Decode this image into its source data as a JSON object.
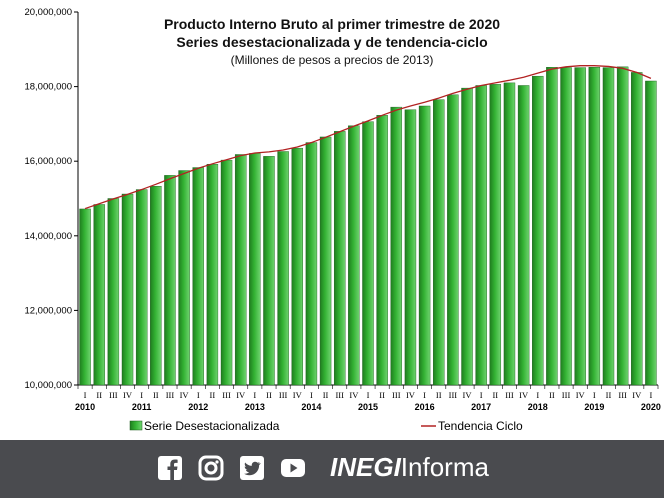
{
  "header": {
    "title_line1": "Producto Interno Bruto al primer trimestre de 2020",
    "title_line2": "Series desestacionalizada y de tendencia-ciclo",
    "subtitle": "(Millones de pesos a precios de 2013)"
  },
  "footer": {
    "brand_bold": "INEGI",
    "brand_regular": "Informa",
    "icons": [
      "facebook-icon",
      "instagram-icon",
      "twitter-icon",
      "youtube-icon"
    ],
    "background": "#4a4b4f"
  },
  "chart_data": {
    "type": "bar",
    "title": "Producto Interno Bruto al primer trimestre de 2020",
    "subtitle": "Series desestacionalizada y de tendencia-ciclo (Millones de pesos a precios de 2013)",
    "ylim": [
      10000000,
      20000000
    ],
    "y_ticks": [
      "10,000,000",
      "12,000,000",
      "14,000,000",
      "16,000,000",
      "18,000,000",
      "20,000,000"
    ],
    "quarter_labels": [
      "I",
      "II",
      "III",
      "IV"
    ],
    "years": [
      "2010",
      "2011",
      "2012",
      "2013",
      "2014",
      "2015",
      "2016",
      "2017",
      "2018",
      "2019",
      "2020"
    ],
    "categories": [
      "2010-I",
      "2010-II",
      "2010-III",
      "2010-IV",
      "2011-I",
      "2011-II",
      "2011-III",
      "2011-IV",
      "2012-I",
      "2012-II",
      "2012-III",
      "2012-IV",
      "2013-I",
      "2013-II",
      "2013-III",
      "2013-IV",
      "2014-I",
      "2014-II",
      "2014-III",
      "2014-IV",
      "2015-I",
      "2015-II",
      "2015-III",
      "2015-IV",
      "2016-I",
      "2016-II",
      "2016-III",
      "2016-IV",
      "2017-I",
      "2017-II",
      "2017-III",
      "2017-IV",
      "2018-I",
      "2018-II",
      "2018-III",
      "2018-IV",
      "2019-I",
      "2019-II",
      "2019-III",
      "2019-IV",
      "2020-I"
    ],
    "series": [
      {
        "name": "Serie Desestacionalizada",
        "color": "#33b233",
        "values": [
          14720000,
          14840000,
          15000000,
          15120000,
          15240000,
          15330000,
          15620000,
          15750000,
          15830000,
          15920000,
          16030000,
          16180000,
          16210000,
          16130000,
          16260000,
          16350000,
          16500000,
          16650000,
          16800000,
          16950000,
          17060000,
          17230000,
          17450000,
          17380000,
          17480000,
          17650000,
          17780000,
          17960000,
          18030000,
          18060000,
          18100000,
          18030000,
          18280000,
          18520000,
          18510000,
          18510000,
          18520000,
          18510000,
          18530000,
          18380000,
          18150000
        ]
      },
      {
        "name": "Tendencia Ciclo",
        "color": "#b22222",
        "values": [
          14730000,
          14860000,
          14990000,
          15110000,
          15240000,
          15380000,
          15530000,
          15670000,
          15810000,
          15930000,
          16040000,
          16150000,
          16220000,
          16250000,
          16300000,
          16380000,
          16500000,
          16640000,
          16790000,
          16940000,
          17080000,
          17230000,
          17370000,
          17480000,
          17580000,
          17690000,
          17820000,
          17930000,
          18030000,
          18100000,
          18170000,
          18250000,
          18360000,
          18470000,
          18530000,
          18560000,
          18560000,
          18540000,
          18490000,
          18380000,
          18220000
        ]
      }
    ],
    "legend": {
      "position": "bottom"
    },
    "grid": false
  }
}
